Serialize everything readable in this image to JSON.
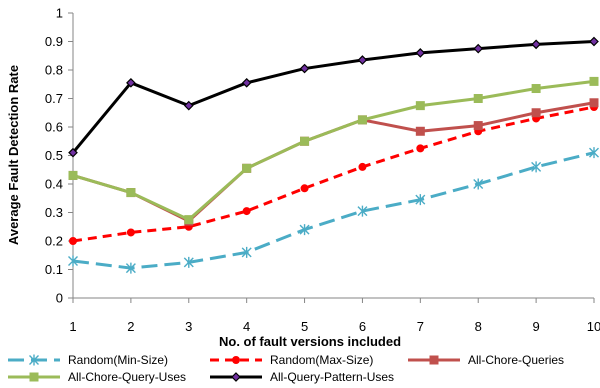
{
  "chart_data": {
    "type": "line",
    "title": "",
    "xlabel": "No. of fault versions included",
    "ylabel": "Average Fault Detection Rate",
    "x": [
      1,
      2,
      3,
      4,
      5,
      6,
      7,
      8,
      9,
      10
    ],
    "xlim": [
      1,
      10
    ],
    "ylim": [
      0,
      1
    ],
    "yticks": [
      "0",
      "0.1",
      "0.2",
      "0.3",
      "0.4",
      "0.5",
      "0.6",
      "0.7",
      "0.8",
      "0.9",
      "1"
    ],
    "xticks": [
      "1",
      "2",
      "3",
      "4",
      "5",
      "6",
      "7",
      "8",
      "9",
      "10"
    ],
    "grid": false,
    "legend_position": "bottom",
    "series": [
      {
        "name": "Random(Min-Size)",
        "color": "#4bacc6",
        "dash": "long-dash",
        "marker": "x-star",
        "values": [
          0.13,
          0.105,
          0.125,
          0.16,
          0.24,
          0.305,
          0.345,
          0.4,
          0.46,
          0.51
        ]
      },
      {
        "name": "Random(Max-Size)",
        "color": "#ff0000",
        "dash": "dash",
        "marker": "circle",
        "values": [
          0.2,
          0.23,
          0.25,
          0.305,
          0.385,
          0.46,
          0.525,
          0.585,
          0.63,
          0.67
        ]
      },
      {
        "name": "All-Chore-Queries",
        "color": "#c0504d",
        "dash": "solid",
        "marker": "square",
        "values": [
          0.43,
          0.37,
          0.27,
          0.455,
          0.55,
          0.625,
          0.585,
          0.605,
          0.65,
          0.685
        ]
      },
      {
        "name": "All-Chore-Query-Uses",
        "color": "#9bbb59",
        "dash": "solid",
        "marker": "square",
        "values": [
          0.43,
          0.37,
          0.275,
          0.455,
          0.55,
          0.625,
          0.675,
          0.7,
          0.735,
          0.76
        ]
      },
      {
        "name": "All-Query-Pattern-Uses",
        "color": "#000000",
        "dash": "solid",
        "marker": "diamond",
        "values": [
          0.51,
          0.755,
          0.675,
          0.755,
          0.805,
          0.835,
          0.86,
          0.875,
          0.89,
          0.9
        ]
      }
    ]
  }
}
